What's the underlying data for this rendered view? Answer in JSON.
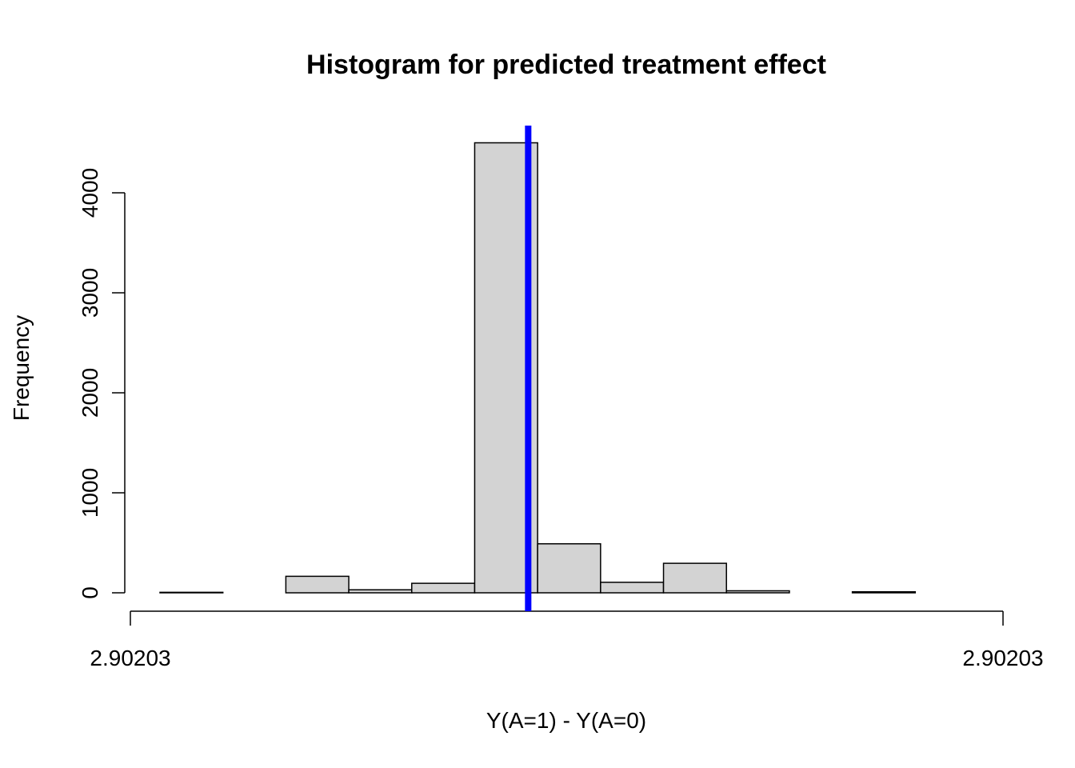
{
  "chart_data": {
    "type": "bar",
    "title": "Histogram for predicted treatment effect",
    "xlabel": "Y(A=1) - Y(A=0)",
    "ylabel": "Frequency",
    "x_tick_labels": [
      "2.90203",
      "2.90203"
    ],
    "y_ticks": [
      0,
      1000,
      2000,
      3000,
      4000
    ],
    "y_tick_labels": [
      "0",
      "1000",
      "2000",
      "3000",
      "4000"
    ],
    "ylim": [
      0,
      4650
    ],
    "grid": false,
    "bin_count": 13,
    "values": [
      5,
      0,
      165,
      30,
      95,
      4500,
      490,
      105,
      295,
      20,
      0,
      10,
      0
    ],
    "bar_fill": "#d3d3d3",
    "bar_stroke": "#000000",
    "reference_line": {
      "bin_position": 5.85,
      "color": "#0000ff"
    }
  }
}
